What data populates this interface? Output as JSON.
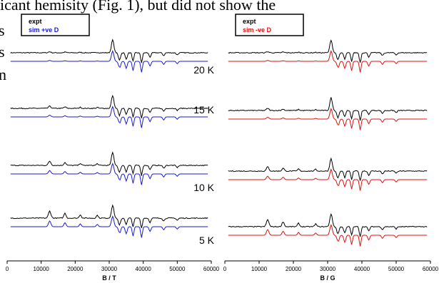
{
  "text_fragments": {
    "top_line": "icant hemisity (Fig. 1), but did not show the",
    "left_char_1": "s",
    "left_char_2": "s",
    "left_char_3": "n"
  },
  "colors": {
    "experiment": "#000000",
    "sim_positive": "#1a1ad6",
    "sim_negative": "#e01010"
  },
  "chart_data": [
    {
      "type": "line",
      "panel": "left",
      "legend": [
        "expt",
        "sim +ve D"
      ],
      "xlabel": "B / T",
      "xlim": [
        0,
        60000
      ],
      "xticks": [
        0,
        10000,
        20000,
        30000,
        40000,
        50000,
        60000
      ],
      "temperatures": [
        "20 K",
        "15 K",
        "10 K",
        "5 K"
      ],
      "series": [
        {
          "name": "expt",
          "color": "#000000"
        },
        {
          "name": "sim +ve D",
          "color": "#1a1ad6"
        }
      ]
    },
    {
      "type": "line",
      "panel": "right",
      "legend": [
        "expt",
        "sim -ve D"
      ],
      "xlabel": "B / G",
      "xlim": [
        0,
        60000
      ],
      "xticks": [
        0,
        10000,
        20000,
        30000,
        40000,
        50000,
        60000
      ],
      "temperatures": [
        "20 K",
        "15 K",
        "10 K",
        "5 K"
      ],
      "series": [
        {
          "name": "expt",
          "color": "#000000"
        },
        {
          "name": "sim -ve D",
          "color": "#e01010"
        }
      ]
    }
  ]
}
